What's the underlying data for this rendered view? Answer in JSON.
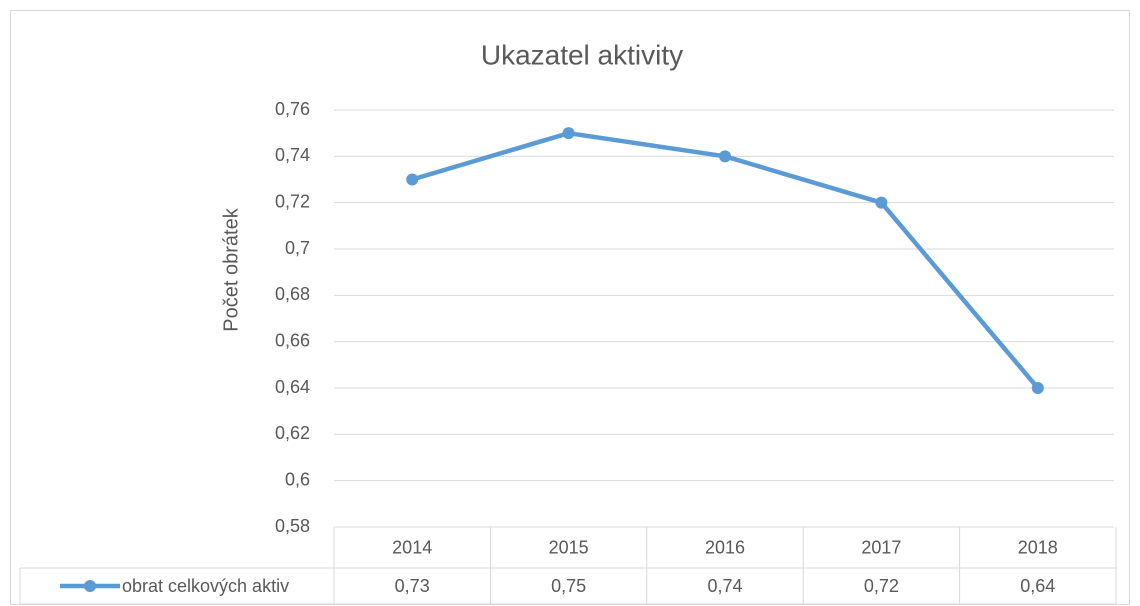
{
  "chart_data": {
    "type": "line",
    "title": "Ukazatel aktivity",
    "y_label": "Počet obrátek",
    "categories": [
      "2014",
      "2015",
      "2016",
      "2017",
      "2018"
    ],
    "series": [
      {
        "name": "obrat celkových aktiv",
        "color": "#5b9bd5",
        "values": [
          0.73,
          0.75,
          0.74,
          0.72,
          0.64
        ],
        "value_labels": [
          "0,73",
          "0,75",
          "0,74",
          "0,72",
          "0,64"
        ]
      }
    ],
    "ylim": [
      0.58,
      0.76
    ],
    "yticks": [
      {
        "value": 0.58,
        "label": "0,58"
      },
      {
        "value": 0.6,
        "label": "0,6"
      },
      {
        "value": 0.62,
        "label": "0,62"
      },
      {
        "value": 0.64,
        "label": "0,64"
      },
      {
        "value": 0.66,
        "label": "0,66"
      },
      {
        "value": 0.68,
        "label": "0,68"
      },
      {
        "value": 0.7,
        "label": "0,7"
      },
      {
        "value": 0.72,
        "label": "0,72"
      },
      {
        "value": 0.74,
        "label": "0,74"
      },
      {
        "value": 0.76,
        "label": "0,76"
      }
    ],
    "grid": true,
    "legend": "bottom-table"
  }
}
